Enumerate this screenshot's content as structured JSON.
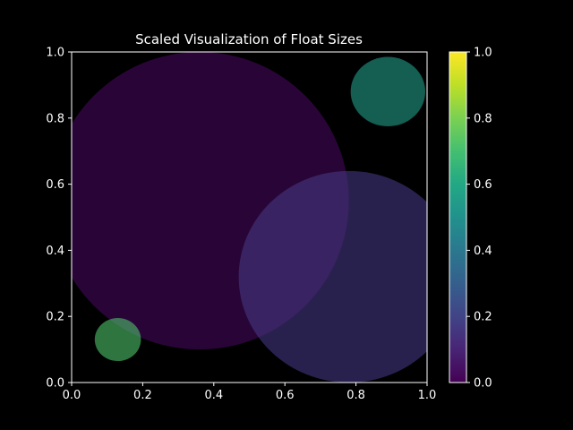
{
  "chart_data": {
    "type": "scatter",
    "title": "Scaled Visualization of Float Sizes",
    "xlabel": "",
    "ylabel": "",
    "xlim": [
      0.0,
      1.0
    ],
    "ylim": [
      0.0,
      1.0
    ],
    "grid": false,
    "background": "#000000",
    "points": [
      {
        "x": 0.36,
        "y": 0.55,
        "rx": 0.42,
        "ry": 0.45,
        "color_value": 0.02
      },
      {
        "x": 0.78,
        "y": 0.32,
        "rx": 0.31,
        "ry": 0.32,
        "color_value": 0.16
      },
      {
        "x": 0.89,
        "y": 0.88,
        "rx": 0.105,
        "ry": 0.105,
        "color_value": 0.55
      },
      {
        "x": 0.13,
        "y": 0.13,
        "rx": 0.065,
        "ry": 0.065,
        "color_value": 0.72
      }
    ],
    "marker_opacity": 0.6,
    "x_ticks": [
      "0.0",
      "0.2",
      "0.4",
      "0.6",
      "0.8",
      "1.0"
    ],
    "y_ticks": [
      "0.0",
      "0.2",
      "0.4",
      "0.6",
      "0.8",
      "1.0"
    ],
    "colorbar": {
      "colormap": "viridis",
      "range": [
        0.0,
        1.0
      ],
      "ticks": [
        "0.0",
        "0.2",
        "0.4",
        "0.6",
        "0.8",
        "1.0"
      ]
    }
  }
}
